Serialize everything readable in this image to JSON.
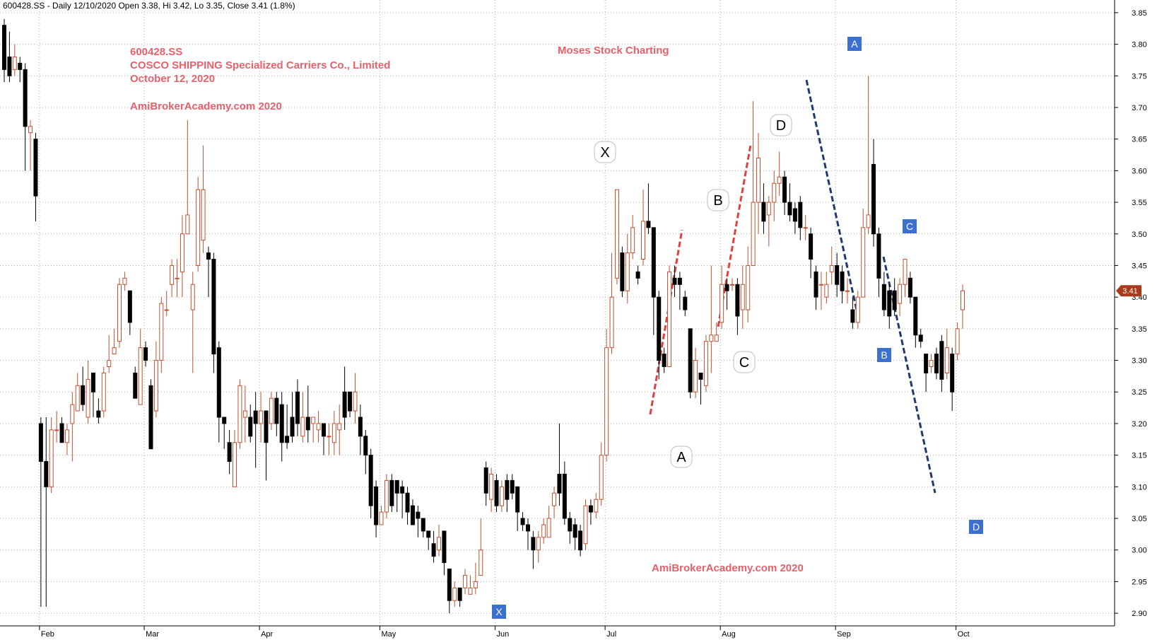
{
  "header": "600428.SS - Daily 12/10/2020 Open 3.38, Hi 3.42, Lo 3.35, Close 3.41 (1.8%)",
  "annotations": {
    "ticker": "600428.SS",
    "company": "COSCO SHIPPING Specialized Carriers Co., Limited",
    "date": "October 12, 2020",
    "site_top": "AmiBrokerAcademy.com  2020",
    "moses": "Moses Stock Charting",
    "site_bottom": "AmiBrokerAcademy.com  2020"
  },
  "colors": {
    "up": "#c0502e",
    "down": "#000000",
    "grid": "#b0b0b0",
    "annotation": "#e8606a",
    "red_trend": "#e04040",
    "blue_trend": "#1f3a6e",
    "blue_label": "#3b6fd0",
    "price_marker": "#a83c1a"
  },
  "chart_data": {
    "type": "candlestick",
    "ylim": [
      2.88,
      3.87
    ],
    "yticks": [
      "2.90",
      "2.95",
      "3.00",
      "3.05",
      "3.10",
      "3.15",
      "3.20",
      "3.25",
      "3.30",
      "3.35",
      "3.40",
      "3.45",
      "3.50",
      "3.55",
      "3.60",
      "3.65",
      "3.70",
      "3.75",
      "3.80",
      "3.85"
    ],
    "months": [
      "Feb",
      "Mar",
      "Apr",
      "May",
      "Jun",
      "Jul",
      "Aug",
      "Sep",
      "Oct"
    ],
    "last_price": "3.41",
    "candles": [
      [
        3.83,
        3.76,
        3.84,
        3.74
      ],
      [
        3.78,
        3.75,
        3.82,
        3.74
      ],
      [
        3.76,
        3.78,
        3.8,
        3.75
      ],
      [
        3.77,
        3.76,
        3.78,
        3.74
      ],
      [
        3.76,
        3.67,
        3.77,
        3.6
      ],
      [
        3.66,
        3.67,
        3.68,
        3.6
      ],
      [
        3.65,
        3.56,
        3.66,
        3.52
      ],
      [
        3.2,
        3.14,
        3.21,
        2.91
      ],
      [
        3.14,
        3.1,
        3.21,
        2.91
      ],
      [
        3.1,
        3.19,
        3.21,
        3.09
      ],
      [
        3.19,
        3.19,
        3.22,
        3.17
      ],
      [
        3.2,
        3.17,
        3.21,
        3.17
      ],
      [
        3.17,
        3.19,
        3.2,
        3.15
      ],
      [
        3.2,
        3.23,
        3.25,
        3.14
      ],
      [
        3.22,
        3.26,
        3.28,
        3.22
      ],
      [
        3.26,
        3.23,
        3.29,
        3.22
      ],
      [
        3.21,
        3.27,
        3.3,
        3.2
      ],
      [
        3.28,
        3.25,
        3.28,
        3.21
      ],
      [
        3.22,
        3.21,
        3.24,
        3.2
      ],
      [
        3.22,
        3.28,
        3.29,
        3.21
      ],
      [
        3.29,
        3.3,
        3.34,
        3.28
      ],
      [
        3.31,
        3.32,
        3.35,
        3.31
      ],
      [
        3.33,
        3.42,
        3.43,
        3.32
      ],
      [
        3.42,
        3.43,
        3.44,
        3.41
      ],
      [
        3.41,
        3.36,
        3.41,
        3.34
      ],
      [
        3.28,
        3.24,
        3.29,
        3.24
      ],
      [
        3.23,
        3.32,
        3.35,
        3.23
      ],
      [
        3.32,
        3.3,
        3.33,
        3.29
      ],
      [
        3.26,
        3.16,
        3.27,
        3.16
      ],
      [
        3.22,
        3.3,
        3.33,
        3.21
      ],
      [
        3.3,
        3.39,
        3.4,
        3.28
      ],
      [
        3.38,
        3.38,
        3.41,
        3.37
      ],
      [
        3.42,
        3.45,
        3.46,
        3.4
      ],
      [
        3.43,
        3.43,
        3.46,
        3.4
      ],
      [
        3.44,
        3.5,
        3.53,
        3.4
      ],
      [
        3.5,
        3.53,
        3.68,
        3.5
      ],
      [
        3.38,
        3.42,
        3.44,
        3.28
      ],
      [
        3.45,
        3.57,
        3.59,
        3.44
      ],
      [
        3.49,
        3.57,
        3.64,
        3.47
      ],
      [
        3.47,
        3.46,
        3.48,
        3.4
      ],
      [
        3.46,
        3.31,
        3.47,
        3.28
      ],
      [
        3.32,
        3.21,
        3.33,
        3.17
      ],
      [
        3.21,
        3.2,
        3.21,
        3.16
      ],
      [
        3.17,
        3.14,
        3.19,
        3.12
      ],
      [
        3.1,
        3.17,
        3.19,
        3.1
      ],
      [
        3.17,
        3.26,
        3.27,
        3.16
      ],
      [
        3.21,
        3.22,
        3.26,
        3.17
      ],
      [
        3.21,
        3.18,
        3.23,
        3.17
      ],
      [
        3.22,
        3.2,
        3.25,
        3.13
      ],
      [
        3.2,
        3.22,
        3.25,
        3.17
      ],
      [
        3.22,
        3.17,
        3.22,
        3.11
      ],
      [
        3.2,
        3.24,
        3.25,
        3.19
      ],
      [
        3.24,
        3.2,
        3.25,
        3.18
      ],
      [
        3.23,
        3.17,
        3.25,
        3.14
      ],
      [
        3.18,
        3.17,
        3.23,
        3.16
      ],
      [
        3.21,
        3.18,
        3.25,
        3.17
      ],
      [
        3.25,
        3.2,
        3.27,
        3.18
      ],
      [
        3.18,
        3.21,
        3.25,
        3.17
      ],
      [
        3.21,
        3.19,
        3.26,
        3.17
      ],
      [
        3.2,
        3.21,
        3.21,
        3.17
      ],
      [
        3.19,
        3.2,
        3.22,
        3.17
      ],
      [
        3.2,
        3.18,
        3.2,
        3.15
      ],
      [
        3.18,
        3.18,
        3.2,
        3.15
      ],
      [
        3.17,
        3.2,
        3.22,
        3.15
      ],
      [
        3.19,
        3.2,
        3.23,
        3.15
      ],
      [
        3.25,
        3.21,
        3.29,
        3.19
      ],
      [
        3.25,
        3.22,
        3.25,
        3.21
      ],
      [
        3.22,
        3.25,
        3.28,
        3.2
      ],
      [
        3.21,
        3.18,
        3.23,
        3.15
      ],
      [
        3.18,
        3.15,
        3.19,
        3.12
      ],
      [
        3.15,
        3.07,
        3.16,
        3.05
      ],
      [
        3.1,
        3.04,
        3.11,
        3.02
      ],
      [
        3.04,
        3.06,
        3.07,
        3.04
      ],
      [
        3.06,
        3.11,
        3.12,
        3.05
      ],
      [
        3.11,
        3.07,
        3.12,
        3.06
      ],
      [
        3.11,
        3.09,
        3.11,
        3.06
      ],
      [
        3.1,
        3.09,
        3.11,
        3.05
      ],
      [
        3.09,
        3.06,
        3.1,
        3.04
      ],
      [
        3.07,
        3.04,
        3.08,
        3.04
      ],
      [
        3.06,
        3.05,
        3.07,
        3.02
      ],
      [
        3.05,
        3.03,
        3.05,
        3.02
      ],
      [
        3.03,
        3.02,
        3.03,
        3.0
      ],
      [
        3.01,
        2.99,
        3.03,
        2.98
      ],
      [
        3.0,
        3.02,
        3.04,
        2.99
      ],
      [
        3.03,
        2.98,
        3.03,
        2.96
      ],
      [
        2.97,
        2.92,
        2.97,
        2.9
      ],
      [
        2.92,
        2.94,
        2.95,
        2.91
      ],
      [
        2.94,
        2.92,
        2.94,
        2.91
      ],
      [
        2.94,
        2.96,
        2.97,
        2.93
      ],
      [
        2.93,
        2.94,
        2.96,
        2.93
      ],
      [
        2.94,
        2.95,
        2.98,
        2.93
      ],
      [
        2.96,
        3.0,
        3.05,
        2.96
      ],
      [
        3.13,
        3.09,
        3.14,
        3.07
      ],
      [
        3.08,
        3.12,
        3.13,
        3.06
      ],
      [
        3.11,
        3.07,
        3.12,
        3.06
      ],
      [
        3.07,
        3.1,
        3.11,
        3.06
      ],
      [
        3.11,
        3.08,
        3.12,
        3.06
      ],
      [
        3.11,
        3.09,
        3.12,
        3.08
      ],
      [
        3.1,
        3.06,
        3.1,
        3.03
      ],
      [
        3.05,
        3.04,
        3.06,
        3.03
      ],
      [
        3.04,
        3.03,
        3.05,
        3.0
      ],
      [
        3.02,
        3.0,
        3.03,
        2.97
      ],
      [
        3.0,
        3.02,
        3.03,
        2.98
      ],
      [
        3.02,
        3.04,
        3.05,
        3.01
      ],
      [
        3.02,
        3.05,
        3.07,
        3.02
      ],
      [
        3.07,
        3.09,
        3.1,
        3.05
      ],
      [
        3.12,
        3.09,
        3.2,
        3.07
      ],
      [
        3.12,
        3.05,
        3.14,
        3.04
      ],
      [
        3.05,
        3.03,
        3.06,
        3.01
      ],
      [
        3.04,
        3.02,
        3.05,
        3.0
      ],
      [
        3.03,
        3.0,
        3.04,
        2.99
      ],
      [
        3.01,
        3.07,
        3.08,
        3.0
      ],
      [
        3.07,
        3.06,
        3.08,
        3.04
      ],
      [
        3.06,
        3.08,
        3.09,
        3.05
      ],
      [
        3.08,
        3.15,
        3.17,
        3.07
      ],
      [
        3.15,
        3.32,
        3.35,
        3.14
      ],
      [
        3.32,
        3.4,
        3.47,
        3.31
      ],
      [
        3.43,
        3.57,
        3.57,
        3.42
      ],
      [
        3.47,
        3.41,
        3.48,
        3.4
      ],
      [
        3.41,
        3.47,
        3.5,
        3.39
      ],
      [
        3.47,
        3.51,
        3.53,
        3.46
      ],
      [
        3.44,
        3.43,
        3.45,
        3.42
      ],
      [
        3.46,
        3.52,
        3.57,
        3.45
      ],
      [
        3.52,
        3.51,
        3.58,
        3.5
      ],
      [
        3.51,
        3.4,
        3.51,
        3.34
      ],
      [
        3.4,
        3.3,
        3.41,
        3.27
      ],
      [
        3.31,
        3.29,
        3.32,
        3.28
      ],
      [
        3.29,
        3.44,
        3.45,
        3.29
      ],
      [
        3.43,
        3.42,
        3.45,
        3.4
      ],
      [
        3.43,
        3.42,
        3.44,
        3.38
      ],
      [
        3.4,
        3.38,
        3.41,
        3.37
      ],
      [
        3.35,
        3.25,
        3.35,
        3.24
      ],
      [
        3.25,
        3.3,
        3.32,
        3.24
      ],
      [
        3.28,
        3.27,
        3.28,
        3.23
      ],
      [
        3.26,
        3.33,
        3.34,
        3.25
      ],
      [
        3.33,
        3.34,
        3.45,
        3.28
      ],
      [
        3.33,
        3.34,
        3.36,
        3.33
      ],
      [
        3.36,
        3.42,
        3.45,
        3.35
      ],
      [
        3.42,
        3.41,
        3.43,
        3.38
      ],
      [
        3.42,
        3.42,
        3.43,
        3.41
      ],
      [
        3.42,
        3.37,
        3.43,
        3.34
      ],
      [
        3.38,
        3.42,
        3.45,
        3.35
      ],
      [
        3.38,
        3.45,
        3.48,
        3.36
      ],
      [
        3.45,
        3.55,
        3.71,
        3.45
      ],
      [
        3.55,
        3.62,
        3.66,
        3.5
      ],
      [
        3.55,
        3.52,
        3.58,
        3.5
      ],
      [
        3.53,
        3.55,
        3.56,
        3.48
      ],
      [
        3.55,
        3.58,
        3.6,
        3.52
      ],
      [
        3.58,
        3.59,
        3.63,
        3.56
      ],
      [
        3.59,
        3.55,
        3.6,
        3.53
      ],
      [
        3.55,
        3.53,
        3.58,
        3.52
      ],
      [
        3.54,
        3.52,
        3.55,
        3.5
      ],
      [
        3.55,
        3.51,
        3.56,
        3.49
      ],
      [
        3.51,
        3.51,
        3.53,
        3.49
      ],
      [
        3.5,
        3.46,
        3.51,
        3.43
      ],
      [
        3.44,
        3.4,
        3.45,
        3.38
      ],
      [
        3.42,
        3.42,
        3.44,
        3.38
      ],
      [
        3.4,
        3.42,
        3.44,
        3.39
      ],
      [
        3.44,
        3.45,
        3.48,
        3.42
      ],
      [
        3.45,
        3.42,
        3.47,
        3.4
      ],
      [
        3.44,
        3.41,
        3.45,
        3.39
      ],
      [
        3.41,
        3.41,
        3.43,
        3.39
      ],
      [
        3.38,
        3.36,
        3.4,
        3.35
      ],
      [
        3.36,
        3.4,
        3.41,
        3.35
      ],
      [
        3.4,
        3.51,
        3.54,
        3.4
      ],
      [
        3.51,
        3.53,
        3.75,
        3.5
      ],
      [
        3.61,
        3.5,
        3.65,
        3.48
      ],
      [
        3.5,
        3.43,
        3.51,
        3.4
      ],
      [
        3.42,
        3.38,
        3.44,
        3.37
      ],
      [
        3.41,
        3.37,
        3.42,
        3.35
      ],
      [
        3.41,
        3.38,
        3.43,
        3.37
      ],
      [
        3.39,
        3.42,
        3.43,
        3.37
      ],
      [
        3.42,
        3.46,
        3.46,
        3.4
      ],
      [
        3.43,
        3.4,
        3.44,
        3.39
      ],
      [
        3.4,
        3.34,
        3.4,
        3.32
      ],
      [
        3.34,
        3.33,
        3.35,
        3.32
      ],
      [
        3.31,
        3.28,
        3.31,
        3.25
      ],
      [
        3.29,
        3.3,
        3.31,
        3.28
      ],
      [
        3.31,
        3.28,
        3.32,
        3.27
      ],
      [
        3.33,
        3.27,
        3.34,
        3.25
      ],
      [
        3.28,
        3.32,
        3.35,
        3.27
      ],
      [
        3.31,
        3.25,
        3.32,
        3.22
      ],
      [
        3.31,
        3.35,
        3.36,
        3.3
      ],
      [
        3.38,
        3.41,
        3.42,
        3.35
      ]
    ]
  },
  "patterns": {
    "black_labels": [
      "X",
      "A",
      "B",
      "C",
      "D"
    ],
    "blue_labels": [
      "A",
      "B",
      "C",
      "D",
      "X"
    ]
  }
}
